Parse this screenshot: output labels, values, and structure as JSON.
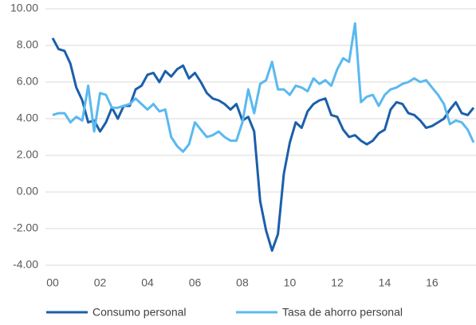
{
  "chart_data": {
    "type": "line",
    "x": [
      0,
      0.25,
      0.5,
      0.75,
      1,
      1.25,
      1.5,
      1.75,
      2,
      2.25,
      2.5,
      2.75,
      3,
      3.25,
      3.5,
      3.75,
      4,
      4.25,
      4.5,
      4.75,
      5,
      5.25,
      5.5,
      5.75,
      6,
      6.25,
      6.5,
      6.75,
      7,
      7.25,
      7.5,
      7.75,
      8,
      8.25,
      8.5,
      8.75,
      9,
      9.25,
      9.5,
      9.75,
      10,
      10.25,
      10.5,
      10.75,
      11,
      11.25,
      11.5,
      11.75,
      12,
      12.25,
      12.5,
      12.75,
      13,
      13.25,
      13.5,
      13.75,
      14,
      14.25,
      14.5,
      14.75,
      15,
      15.25,
      15.5,
      15.75,
      16,
      16.25,
      16.5,
      16.75,
      17,
      17.25,
      17.5,
      17.75
    ],
    "series": [
      {
        "name": "Consumo personal",
        "color": "#1b5fab",
        "values": [
          8.4,
          7.8,
          7.7,
          7.0,
          5.7,
          5.0,
          3.8,
          3.9,
          3.3,
          3.8,
          4.6,
          4.0,
          4.7,
          4.7,
          5.6,
          5.8,
          6.4,
          6.5,
          6.0,
          6.6,
          6.3,
          6.7,
          6.9,
          6.2,
          6.5,
          6.0,
          5.4,
          5.1,
          5.0,
          4.8,
          4.5,
          4.8,
          3.9,
          4.1,
          3.3,
          -0.5,
          -2.1,
          -3.2,
          -2.3,
          1.0,
          2.7,
          3.8,
          3.5,
          4.4,
          4.8,
          5.0,
          5.1,
          4.2,
          4.1,
          3.4,
          3.0,
          3.1,
          2.8,
          2.6,
          2.8,
          3.2,
          3.4,
          4.5,
          4.9,
          4.8,
          4.3,
          4.2,
          3.9,
          3.5,
          3.6,
          3.8,
          4.0,
          4.5,
          4.9,
          4.3,
          4.2,
          4.6
        ]
      },
      {
        "name": "Tasa de ahorro personal",
        "color": "#5ab9ef",
        "values": [
          4.2,
          4.3,
          4.3,
          3.8,
          4.1,
          3.9,
          5.8,
          3.3,
          5.4,
          5.3,
          4.6,
          4.6,
          4.7,
          4.8,
          5.1,
          4.8,
          4.5,
          4.8,
          4.4,
          4.5,
          3.0,
          2.5,
          2.2,
          2.6,
          3.8,
          3.4,
          3.0,
          3.1,
          3.3,
          3.0,
          2.8,
          2.8,
          3.8,
          5.6,
          4.3,
          5.9,
          6.1,
          7.1,
          5.6,
          5.6,
          5.3,
          5.8,
          5.7,
          5.5,
          6.2,
          5.9,
          6.1,
          5.8,
          6.7,
          7.3,
          7.1,
          9.2,
          4.9,
          5.2,
          5.3,
          4.7,
          5.3,
          5.6,
          5.7,
          5.9,
          6.0,
          6.2,
          6.0,
          6.1,
          5.7,
          5.3,
          4.8,
          3.7,
          3.9,
          3.8,
          3.4,
          2.7
        ]
      }
    ],
    "xlim": [
      0,
      17.75
    ],
    "xticks": [
      {
        "value": 0,
        "label": "00"
      },
      {
        "value": 2,
        "label": "02"
      },
      {
        "value": 4,
        "label": "04"
      },
      {
        "value": 6,
        "label": "06"
      },
      {
        "value": 8,
        "label": "08"
      },
      {
        "value": 10,
        "label": "10"
      },
      {
        "value": 12,
        "label": "12"
      },
      {
        "value": 14,
        "label": "14"
      },
      {
        "value": 16,
        "label": "16"
      }
    ],
    "ylim": [
      -4,
      10
    ],
    "yticks": [
      {
        "value": 10,
        "label": "10.00"
      },
      {
        "value": 8,
        "label": "8.00"
      },
      {
        "value": 6,
        "label": "6.00"
      },
      {
        "value": 4,
        "label": "4.00"
      },
      {
        "value": 2,
        "label": "2.00"
      },
      {
        "value": 0,
        "label": "0.00"
      },
      {
        "value": -2,
        "label": "-2.00"
      },
      {
        "value": -4,
        "label": "-4.00"
      }
    ],
    "grid": true,
    "legend": "bottom"
  }
}
